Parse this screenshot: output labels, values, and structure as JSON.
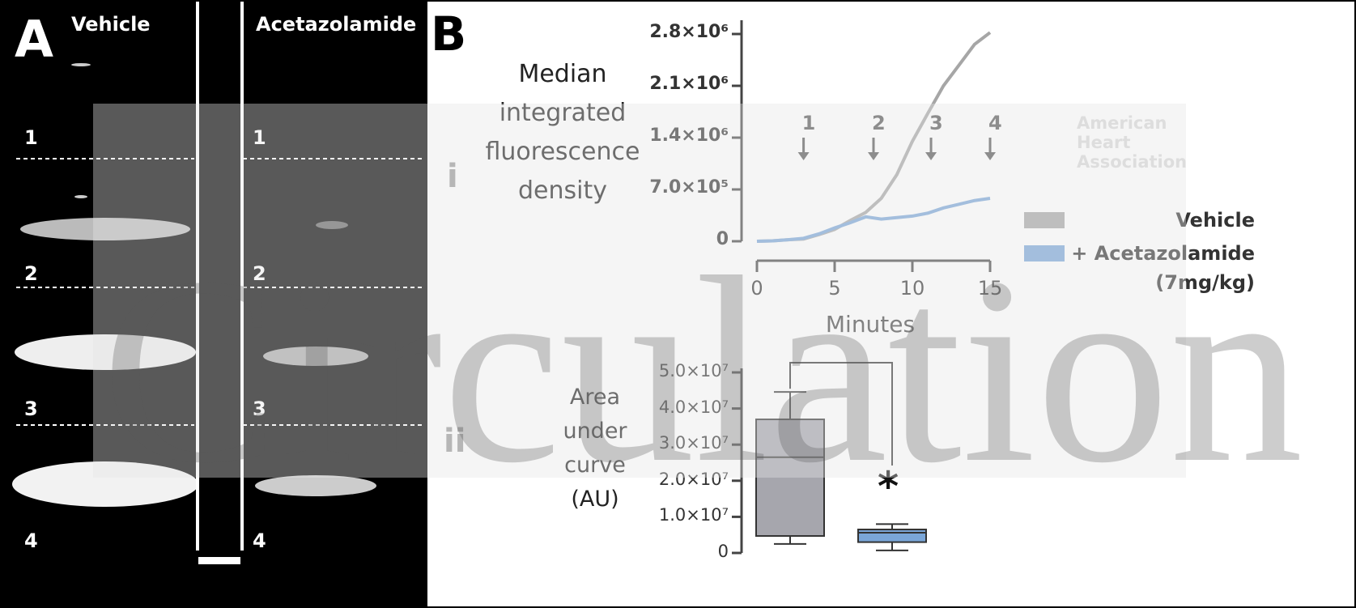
{
  "panel_a": {
    "label": "A",
    "columns": [
      "Vehicle",
      "Acetazolamide"
    ],
    "rows": [
      "1",
      "2",
      "3",
      "4"
    ]
  },
  "panel_b": {
    "label": "B",
    "sublabels": [
      "i",
      "ii"
    ]
  },
  "watermark": {
    "journal": "Circulation",
    "publisher": "American Heart Association"
  },
  "chart_data": [
    {
      "type": "line",
      "y_label": "Median integrated fluorescence density",
      "x_label": "Minutes",
      "x": [
        0,
        1,
        2,
        3,
        4,
        5,
        6,
        7,
        8,
        9,
        10,
        11,
        12,
        13,
        14,
        15
      ],
      "series": [
        {
          "name": "Vehicle",
          "color": "#a6a6a6",
          "values": [
            0,
            5000,
            20000,
            30000,
            90000,
            160000,
            280000,
            390000,
            580000,
            900000,
            1350000,
            1730000,
            2100000,
            2380000,
            2660000,
            2820000
          ]
        },
        {
          "name": "+ Acetazolamide (7mg/kg)",
          "color": "#7aa6d8",
          "values": [
            0,
            5000,
            20000,
            40000,
            100000,
            180000,
            250000,
            330000,
            300000,
            320000,
            340000,
            380000,
            450000,
            500000,
            550000,
            580000
          ]
        }
      ],
      "annotations": [
        {
          "text": "1",
          "x": 3
        },
        {
          "text": "2",
          "x": 7.5
        },
        {
          "text": "3",
          "x": 11.2
        },
        {
          "text": "4",
          "x": 15
        }
      ],
      "xlim": [
        0,
        15
      ],
      "xticks": [
        0,
        5,
        10,
        15
      ],
      "ylim": [
        0,
        2800000
      ],
      "yticks": [
        0,
        {
          "value": 700000,
          "label": "7.0×10⁵"
        },
        {
          "value": 1400000,
          "label": "1.4×10⁶"
        },
        {
          "value": 2100000,
          "label": "2.1×10⁶"
        },
        {
          "value": 2800000,
          "label": "2.8×10⁶"
        }
      ],
      "legend": "right"
    },
    {
      "type": "box",
      "y_label": "Area under curve (AU)",
      "boxes": [
        {
          "color": "#a6a6ad",
          "min": 2500000,
          "q1": 4700000,
          "median": 26500000,
          "q3": 37000000,
          "max": 44600000
        },
        {
          "color": "#7aa6d8",
          "min": 700000,
          "q1": 3000000,
          "median": 5600000,
          "q3": 6500000,
          "max": 8000000
        }
      ],
      "annotation": "*",
      "ylim": [
        0,
        50000000
      ],
      "yticks": [
        0,
        {
          "value": 10000000,
          "label": "1.0×10⁷"
        },
        {
          "value": 20000000,
          "label": "2.0×10⁷"
        },
        {
          "value": 30000000,
          "label": "3.0×10⁷"
        },
        {
          "value": 40000000,
          "label": "4.0×10⁷"
        },
        {
          "value": 50000000,
          "label": "5.0×10⁷"
        }
      ]
    }
  ]
}
